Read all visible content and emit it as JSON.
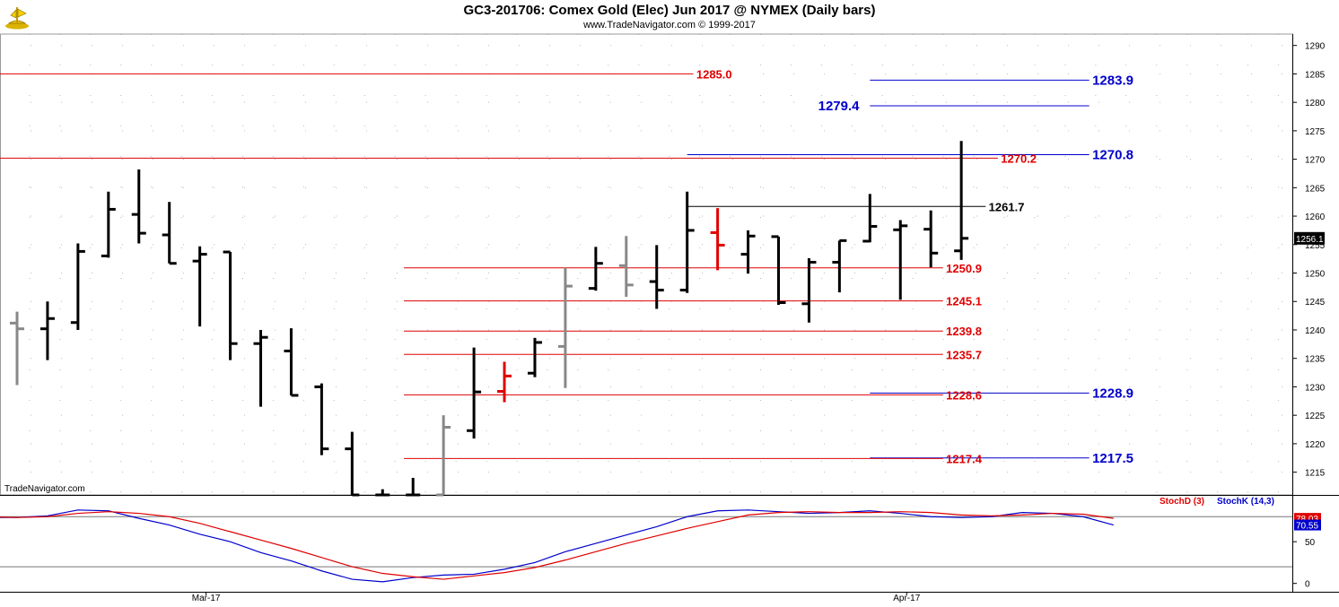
{
  "header": {
    "title": "GC3-201706:  Comex Gold (Elec) Jun 2017 @ NYMEX  (Daily bars)",
    "subtitle": "www.TradeNavigator.com © 1999-2017"
  },
  "watermark": "TradeNavigator.com",
  "colors": {
    "bar": "#000000",
    "bar_up_gray": "#888888",
    "bar_red": "#e00000",
    "red_level": "#e00000",
    "blue_level": "#0000cc",
    "black_level": "#000000",
    "stoch_d": "#e00000",
    "stoch_k": "#0000cc",
    "last_price_bg": "#000000",
    "grid_dot": "#bbbbbb"
  },
  "chart_data": [
    {
      "type": "ohlc",
      "title": "GC3-201706:  Comex Gold (Elec) Jun 2017 @ NYMEX  (Daily bars)",
      "ylim": [
        1211,
        1292
      ],
      "y_ticks": [
        1215,
        1220,
        1225,
        1230,
        1235,
        1240,
        1245,
        1250,
        1255,
        1260,
        1265,
        1270,
        1275,
        1280,
        1285,
        1290
      ],
      "x_ticks": [
        {
          "label": "Mar-17",
          "index": 6
        },
        {
          "label": "Apr-17",
          "index": 29
        }
      ],
      "grid": true,
      "last_price": "1256.1",
      "bars": [
        {
          "o": 1241.2,
          "h": 1243.2,
          "l": 1230.3,
          "c": 1240.2,
          "color": "gray"
        },
        {
          "o": 1240.2,
          "h": 1245.0,
          "l": 1234.7,
          "c": 1242.0,
          "color": "black"
        },
        {
          "o": 1241.3,
          "h": 1255.2,
          "l": 1240.0,
          "c": 1253.8,
          "color": "black"
        },
        {
          "o": 1253.0,
          "h": 1264.3,
          "l": 1252.7,
          "c": 1261.2,
          "color": "black"
        },
        {
          "o": 1260.3,
          "h": 1268.2,
          "l": 1255.2,
          "c": 1257.0,
          "color": "black"
        },
        {
          "o": 1256.7,
          "h": 1262.5,
          "l": 1251.7,
          "c": 1251.7,
          "color": "black"
        },
        {
          "o": 1252.1,
          "h": 1254.7,
          "l": 1240.6,
          "c": 1253.3,
          "color": "black"
        },
        {
          "o": 1253.7,
          "h": 1253.7,
          "l": 1234.7,
          "c": 1237.6,
          "color": "black"
        },
        {
          "o": 1237.6,
          "h": 1240.0,
          "l": 1226.5,
          "c": 1238.7,
          "color": "black"
        },
        {
          "o": 1236.3,
          "h": 1240.3,
          "l": 1228.5,
          "c": 1228.5,
          "color": "black"
        },
        {
          "o": 1230.0,
          "h": 1230.6,
          "l": 1218.0,
          "c": 1219.1,
          "color": "black"
        },
        {
          "o": 1219.1,
          "h": 1222.1,
          "l": 1211.0,
          "c": 1211.0,
          "color": "black"
        },
        {
          "o": 1211.0,
          "h": 1212.0,
          "l": 1211.0,
          "c": 1211.0,
          "color": "black"
        },
        {
          "o": 1211.0,
          "h": 1214.0,
          "l": 1211.0,
          "c": 1211.0,
          "color": "black"
        },
        {
          "o": 1211.0,
          "h": 1225.0,
          "l": 1211.0,
          "c": 1222.9,
          "color": "gray"
        },
        {
          "o": 1222.3,
          "h": 1236.9,
          "l": 1220.9,
          "c": 1229.1,
          "color": "black"
        },
        {
          "o": 1229.2,
          "h": 1234.4,
          "l": 1227.3,
          "c": 1231.9,
          "color": "red"
        },
        {
          "o": 1232.4,
          "h": 1238.6,
          "l": 1231.7,
          "c": 1237.8,
          "color": "black"
        },
        {
          "o": 1237.1,
          "h": 1250.9,
          "l": 1229.8,
          "c": 1247.7,
          "color": "gray"
        },
        {
          "o": 1247.3,
          "h": 1254.6,
          "l": 1246.9,
          "c": 1251.7,
          "color": "black"
        },
        {
          "o": 1251.3,
          "h": 1256.5,
          "l": 1245.8,
          "c": 1247.9,
          "color": "gray"
        },
        {
          "o": 1248.5,
          "h": 1254.9,
          "l": 1243.7,
          "c": 1247.0,
          "color": "black"
        },
        {
          "o": 1247.0,
          "h": 1264.3,
          "l": 1246.5,
          "c": 1257.5,
          "color": "black"
        },
        {
          "o": 1257.1,
          "h": 1261.4,
          "l": 1250.5,
          "c": 1254.9,
          "color": "red"
        },
        {
          "o": 1253.3,
          "h": 1257.5,
          "l": 1249.9,
          "c": 1256.5,
          "color": "black"
        },
        {
          "o": 1256.4,
          "h": 1256.4,
          "l": 1244.4,
          "c": 1244.8,
          "color": "black"
        },
        {
          "o": 1244.6,
          "h": 1252.6,
          "l": 1241.3,
          "c": 1251.9,
          "color": "black"
        },
        {
          "o": 1251.9,
          "h": 1255.7,
          "l": 1246.6,
          "c": 1255.7,
          "color": "black"
        },
        {
          "o": 1255.6,
          "h": 1263.9,
          "l": 1255.4,
          "c": 1258.2,
          "color": "black"
        },
        {
          "o": 1257.6,
          "h": 1259.3,
          "l": 1245.3,
          "c": 1258.3,
          "color": "black"
        },
        {
          "o": 1257.7,
          "h": 1261.0,
          "l": 1251.0,
          "c": 1253.5,
          "color": "black"
        },
        {
          "o": 1253.9,
          "h": 1273.2,
          "l": 1252.3,
          "c": 1256.1,
          "color": "black"
        }
      ],
      "levels": [
        {
          "value": 1285.0,
          "label": "1285.0",
          "color": "red",
          "from": -1,
          "to": 22.2,
          "label_at": 22.3
        },
        {
          "value": 1283.9,
          "label": "1283.9",
          "color": "blue",
          "from": 28.0,
          "to": 35.2,
          "label_at": 35.3
        },
        {
          "value": 1279.4,
          "label": "1279.4",
          "color": "blue",
          "from": 28.0,
          "to": 35.2,
          "label_at": 26.3
        },
        {
          "value": 1270.8,
          "label": "1270.8",
          "color": "blue",
          "from": 22.0,
          "to": 35.2,
          "label_at": 35.3
        },
        {
          "value": 1270.2,
          "label": "1270.2",
          "color": "red",
          "from": -1,
          "to": 32.2,
          "label_at": 32.3
        },
        {
          "value": 1261.7,
          "label": "1261.7",
          "color": "black",
          "from": 22.0,
          "to": 31.8,
          "label_at": 31.9
        },
        {
          "value": 1250.9,
          "label": "1250.9",
          "color": "red",
          "from": 12.7,
          "to": 30.4,
          "label_at": 30.5
        },
        {
          "value": 1245.1,
          "label": "1245.1",
          "color": "red",
          "from": 12.7,
          "to": 30.4,
          "label_at": 30.5
        },
        {
          "value": 1239.8,
          "label": "1239.8",
          "color": "red",
          "from": 12.7,
          "to": 30.4,
          "label_at": 30.5
        },
        {
          "value": 1235.7,
          "label": "1235.7",
          "color": "red",
          "from": 12.7,
          "to": 30.4,
          "label_at": 30.5
        },
        {
          "value": 1228.9,
          "label": "1228.9",
          "color": "blue",
          "from": 28.0,
          "to": 35.2,
          "label_at": 35.3
        },
        {
          "value": 1228.6,
          "label": "1228.6",
          "color": "red",
          "from": 12.7,
          "to": 30.4,
          "label_at": 30.5
        },
        {
          "value": 1217.5,
          "label": "1217.5",
          "color": "blue",
          "from": 28.0,
          "to": 35.2,
          "label_at": 35.3
        },
        {
          "value": 1217.4,
          "label": "1217.4",
          "color": "red",
          "from": 12.7,
          "to": 30.4,
          "label_at": 30.5
        }
      ]
    },
    {
      "type": "line",
      "ylim": [
        -10,
        105
      ],
      "y_ticks": [
        0,
        50
      ],
      "guides": [
        20,
        80
      ],
      "series": [
        {
          "name": "StochD (3)",
          "color": "red",
          "last_label": "78.03",
          "values": [
            80,
            79,
            80,
            84,
            86,
            84,
            80,
            72,
            62,
            52,
            42,
            31,
            20,
            12,
            8,
            5,
            9,
            13,
            19,
            28,
            38,
            48,
            57,
            66,
            74,
            82,
            85,
            86,
            85,
            85,
            86,
            85,
            82,
            81,
            82,
            84,
            83,
            78
          ]
        },
        {
          "name": "StochK (14,3)",
          "color": "blue",
          "last_label": "70.55",
          "values": [
            79,
            79,
            81,
            88,
            87,
            78,
            70,
            59,
            50,
            37,
            27,
            15,
            5,
            2,
            7,
            10,
            11,
            17,
            25,
            38,
            48,
            58,
            68,
            80,
            87,
            88,
            86,
            84,
            85,
            87,
            84,
            80,
            79,
            80,
            85,
            84,
            80,
            70
          ]
        }
      ]
    }
  ]
}
